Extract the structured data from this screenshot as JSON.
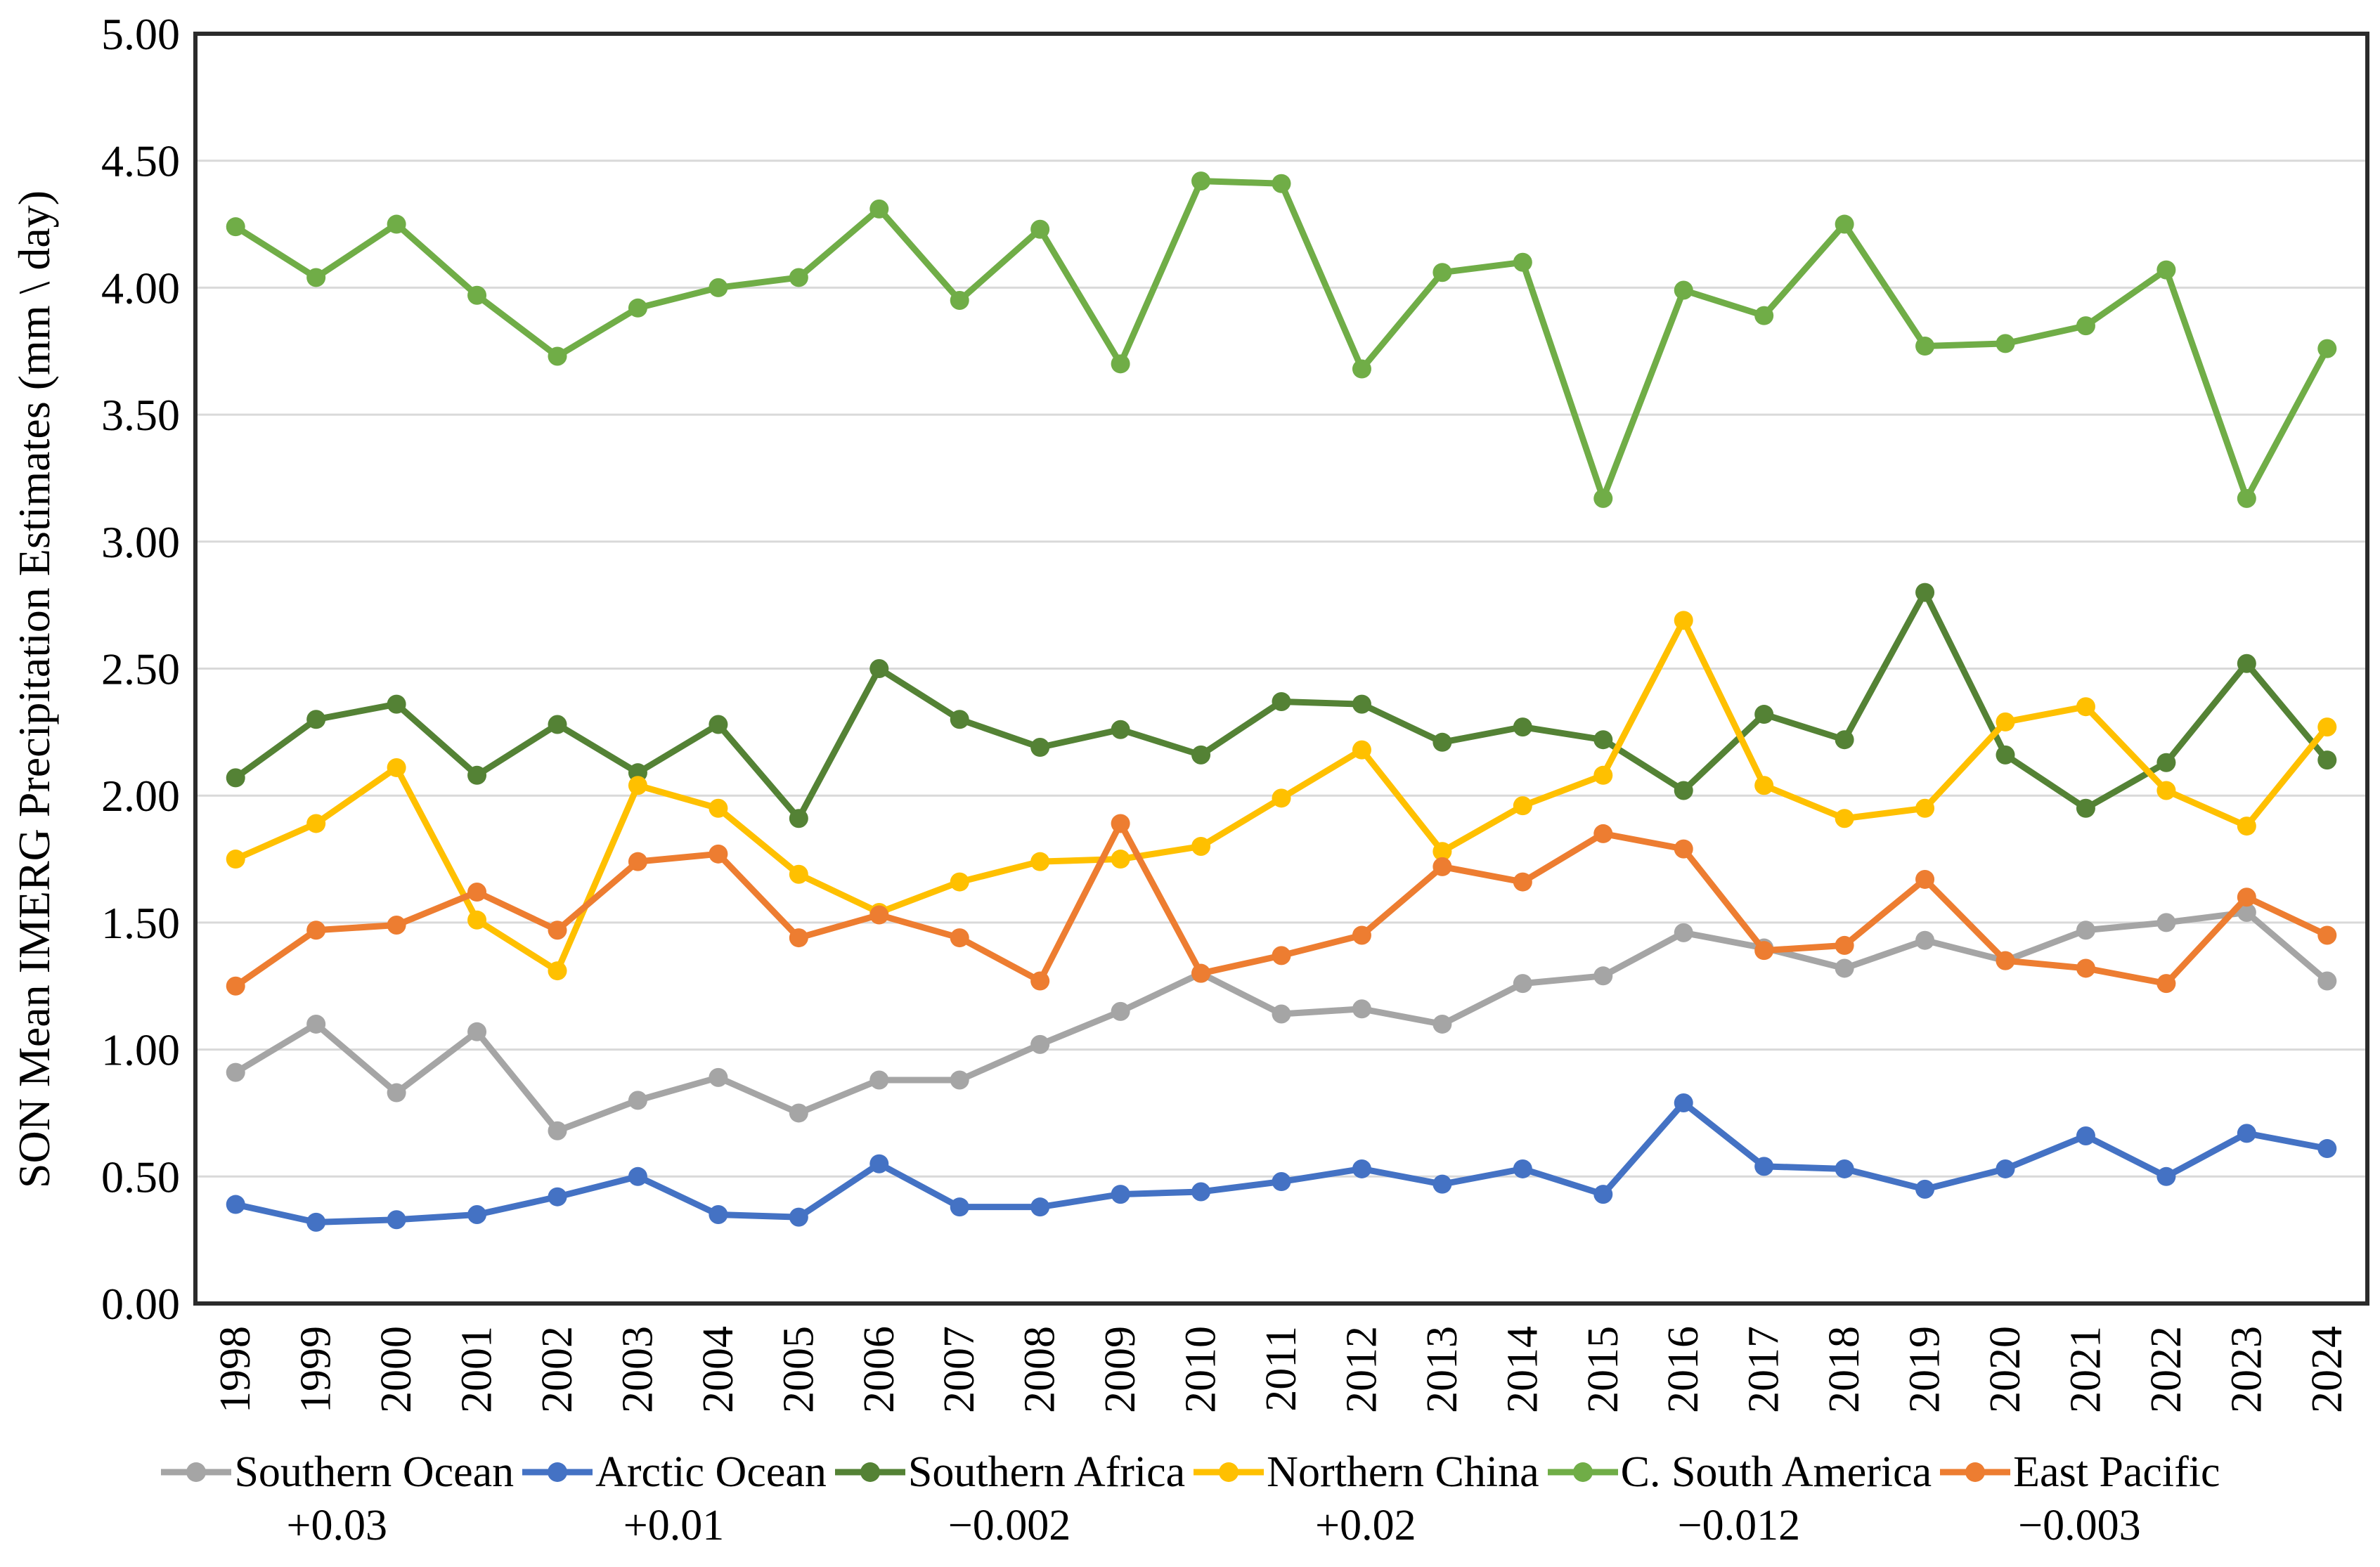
{
  "chart_data": {
    "type": "line",
    "title": "",
    "xlabel": "",
    "ylabel": "SON Mean IMERG Precipitation Estimates (mm \\ day)",
    "ylim": [
      0,
      5
    ],
    "ytick_labels": [
      "0.00",
      "0.50",
      "1.00",
      "1.50",
      "2.00",
      "2.50",
      "3.00",
      "3.50",
      "4.00",
      "4.50",
      "5.00"
    ],
    "grid": "horizontal",
    "legend_position": "bottom",
    "categories": [
      "1998",
      "1999",
      "2000",
      "2001",
      "2002",
      "2003",
      "2004",
      "2005",
      "2006",
      "2007",
      "2008",
      "2009",
      "2010",
      "2011",
      "2012",
      "2013",
      "2014",
      "2015",
      "2016",
      "2017",
      "2018",
      "2019",
      "2020",
      "2021",
      "2022",
      "2023",
      "2024"
    ],
    "series": [
      {
        "name": "Southern Ocean",
        "trend": "+0.03",
        "color": "#A5A5A5",
        "values": [
          0.91,
          1.1,
          0.83,
          1.07,
          0.68,
          0.8,
          0.89,
          0.75,
          0.88,
          0.88,
          1.02,
          1.15,
          1.3,
          1.14,
          1.16,
          1.1,
          1.26,
          1.29,
          1.46,
          1.4,
          1.32,
          1.43,
          1.35,
          1.47,
          1.5,
          1.54,
          1.27
        ]
      },
      {
        "name": "Arctic Ocean",
        "trend": "+0.01",
        "color": "#4472C4",
        "values": [
          0.39,
          0.32,
          0.33,
          0.35,
          0.42,
          0.5,
          0.35,
          0.34,
          0.55,
          0.38,
          0.38,
          0.43,
          0.44,
          0.48,
          0.53,
          0.47,
          0.53,
          0.43,
          0.79,
          0.54,
          0.53,
          0.45,
          0.53,
          0.66,
          0.5,
          0.67,
          0.61
        ]
      },
      {
        "name": "Southern Africa",
        "trend": "−0.002",
        "color": "#548235",
        "values": [
          2.07,
          2.3,
          2.36,
          2.08,
          2.28,
          2.09,
          2.28,
          1.91,
          2.5,
          2.3,
          2.19,
          2.26,
          2.16,
          2.37,
          2.36,
          2.21,
          2.27,
          2.22,
          2.02,
          2.32,
          2.22,
          2.8,
          2.16,
          1.95,
          2.13,
          2.52,
          2.14
        ]
      },
      {
        "name": "Northern China",
        "trend": "+0.02",
        "color": "#FFC000",
        "values": [
          1.75,
          1.89,
          2.11,
          1.51,
          1.31,
          2.04,
          1.95,
          1.69,
          1.54,
          1.66,
          1.74,
          1.75,
          1.8,
          1.99,
          2.18,
          1.78,
          1.96,
          2.08,
          2.69,
          2.04,
          1.91,
          1.95,
          2.29,
          2.35,
          2.02,
          1.88,
          2.27
        ]
      },
      {
        "name": "C. South America",
        "trend": "−0.012",
        "color": "#70AD47",
        "values": [
          4.24,
          4.04,
          4.25,
          3.97,
          3.73,
          3.92,
          4.0,
          4.04,
          4.31,
          3.95,
          4.23,
          3.7,
          4.42,
          4.41,
          3.68,
          4.06,
          4.1,
          3.17,
          3.99,
          3.89,
          4.25,
          3.77,
          3.78,
          3.85,
          4.07,
          3.17,
          3.76
        ]
      },
      {
        "name": "East Pacific",
        "trend": "−0.003",
        "color": "#ED7D31",
        "values": [
          1.25,
          1.47,
          1.49,
          1.62,
          1.47,
          1.74,
          1.77,
          1.44,
          1.53,
          1.44,
          1.27,
          1.89,
          1.3,
          1.37,
          1.45,
          1.72,
          1.66,
          1.85,
          1.79,
          1.39,
          1.41,
          1.67,
          1.35,
          1.32,
          1.26,
          1.6,
          1.45
        ]
      }
    ]
  },
  "style": {
    "background": "#FFFFFF",
    "gridline_color": "#D9D9D9",
    "plot_border_color": "#2B2B2B",
    "text_color": "#000000"
  }
}
